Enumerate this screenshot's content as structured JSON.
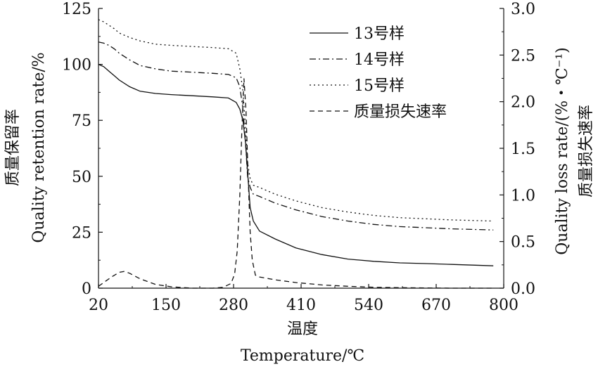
{
  "chart_data": {
    "type": "line",
    "x_title_cn": "温度",
    "x_title_en": "Temperature/℃",
    "y_left_title_cn": "质量保留率",
    "y_left_title_en": "Quality retention rate/%",
    "y_right_title_en": "Quality loss rate/(%・℃⁻¹)",
    "y_right_title_cn": "质量损失速率",
    "xlim": [
      20,
      800
    ],
    "ylim_left": [
      0,
      125
    ],
    "ylim_right": [
      0,
      3.0
    ],
    "x_ticks": [
      "20",
      "150",
      "280",
      "410",
      "540",
      "670",
      "800"
    ],
    "y_left_ticks": [
      "0",
      "25",
      "50",
      "75",
      "100",
      "125"
    ],
    "y_right_ticks": [
      "0.0",
      "0.5",
      "1.0",
      "1.5",
      "2.0",
      "2.5",
      "3.0"
    ],
    "series": [
      {
        "name": "13号样",
        "axis": "left",
        "style": "solid",
        "x": [
          20,
          30,
          40,
          50,
          60,
          80,
          100,
          130,
          160,
          200,
          240,
          270,
          285,
          292,
          298,
          303,
          307,
          312,
          318,
          330,
          360,
          400,
          450,
          500,
          550,
          600,
          650,
          700,
          780
        ],
        "y": [
          100,
          99,
          97,
          95,
          93,
          90,
          88,
          87,
          86.5,
          86,
          85.5,
          85,
          83,
          80,
          75,
          65,
          52,
          36,
          30,
          25.5,
          22,
          18,
          15,
          13,
          12,
          11.3,
          11,
          10.6,
          10
        ]
      },
      {
        "name": "14号样",
        "axis": "left",
        "style": "dashdot",
        "x": [
          20,
          30,
          40,
          50,
          60,
          80,
          100,
          130,
          160,
          200,
          240,
          270,
          285,
          292,
          298,
          303,
          307,
          312,
          318,
          330,
          360,
          400,
          450,
          500,
          550,
          600,
          650,
          700,
          780
        ],
        "y": [
          110,
          109.5,
          108.5,
          107,
          105,
          102,
          99.5,
          98,
          97,
          96.5,
          96,
          95.5,
          94,
          90,
          80,
          65,
          50,
          45,
          42,
          41,
          38,
          35,
          32,
          30,
          28.5,
          27.5,
          27,
          26.5,
          26
        ]
      },
      {
        "name": "15号样",
        "axis": "left",
        "style": "dotted",
        "x": [
          20,
          30,
          40,
          50,
          60,
          80,
          100,
          130,
          160,
          200,
          240,
          270,
          285,
          292,
          298,
          303,
          307,
          312,
          318,
          330,
          360,
          400,
          450,
          500,
          550,
          600,
          650,
          700,
          780
        ],
        "y": [
          120,
          119,
          117.5,
          116,
          114,
          112,
          110.5,
          109,
          108.5,
          108,
          107.5,
          107,
          105,
          98,
          88,
          72,
          56,
          49,
          46,
          45,
          42,
          39,
          36,
          34,
          32.5,
          31.5,
          31,
          30.5,
          30
        ]
      },
      {
        "name": "质量损失速率",
        "axis": "right",
        "style": "dashed",
        "x": [
          20,
          30,
          45,
          60,
          70,
          80,
          100,
          130,
          160,
          200,
          240,
          260,
          275,
          282,
          287,
          292,
          296,
          300,
          304,
          308,
          312,
          316,
          322,
          330,
          360,
          400,
          450,
          500,
          550,
          600,
          700,
          780
        ],
        "y": [
          0.02,
          0.06,
          0.12,
          0.17,
          0.18,
          0.16,
          0.1,
          0.04,
          0.015,
          0.0,
          0.0,
          0.01,
          0.05,
          0.15,
          0.4,
          1.0,
          1.7,
          2.25,
          1.9,
          1.2,
          0.6,
          0.3,
          0.14,
          0.12,
          0.09,
          0.06,
          0.035,
          0.02,
          0.01,
          0.005,
          0.0,
          0.0
        ]
      }
    ],
    "legend_position": "top-right",
    "grid": false
  }
}
